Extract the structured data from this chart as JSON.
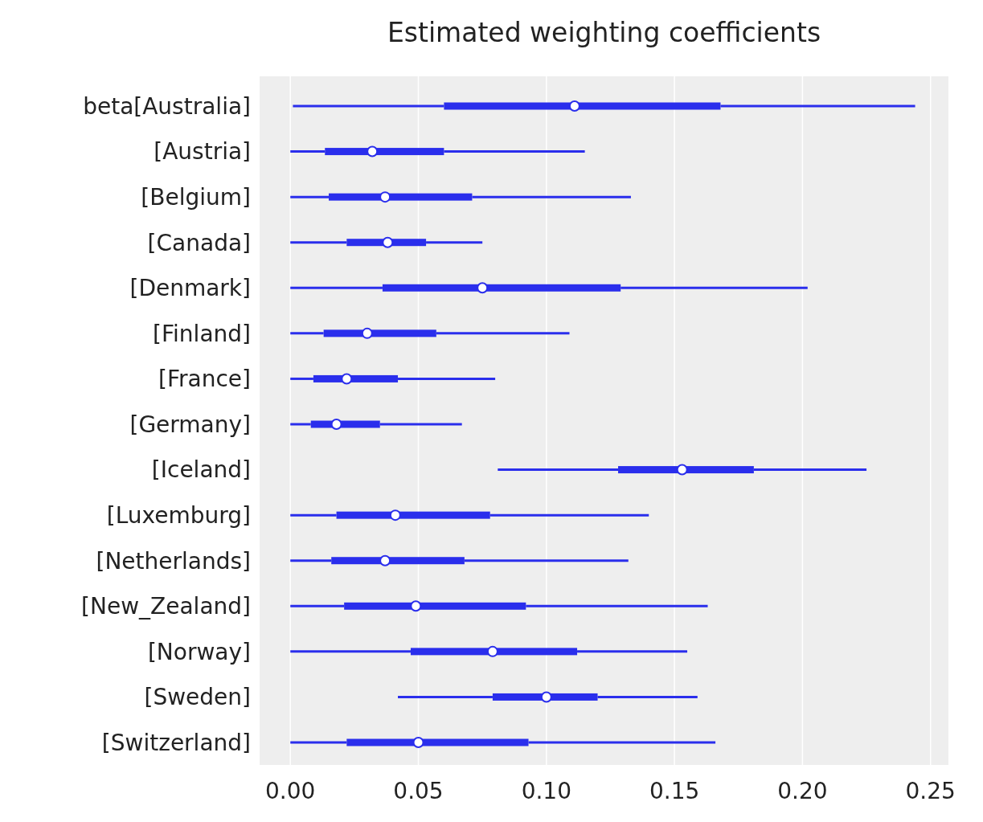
{
  "chart_data": {
    "type": "box",
    "title": "Estimated weighting coefficients",
    "orientation": "horizontal",
    "grid": "x",
    "categories": [
      "beta[Australia]",
      "[Austria]",
      "[Belgium]",
      "[Canada]",
      "[Denmark]",
      "[Finland]",
      "[France]",
      "[Germany]",
      "[Iceland]",
      "[Luxemburg]",
      "[Netherlands]",
      "[New_Zealand]",
      "[Norway]",
      "[Sweden]",
      "[Switzerland]"
    ],
    "series": [
      {
        "color": "#2a2eec",
        "boxes": [
          {
            "low": 0.001,
            "q1": 0.06,
            "median": 0.111,
            "q3": 0.168,
            "high": 0.244
          },
          {
            "low": 0,
            "q1": 0.0135,
            "median": 0.032,
            "q3": 0.06,
            "high": 0.115
          },
          {
            "low": 0,
            "q1": 0.015,
            "median": 0.037,
            "q3": 0.071,
            "high": 0.133
          },
          {
            "low": 0,
            "q1": 0.022,
            "median": 0.038,
            "q3": 0.053,
            "high": 0.075
          },
          {
            "low": 0,
            "q1": 0.036,
            "median": 0.075,
            "q3": 0.129,
            "high": 0.202
          },
          {
            "low": 0,
            "q1": 0.013,
            "median": 0.03,
            "q3": 0.057,
            "high": 0.109
          },
          {
            "low": 0,
            "q1": 0.009,
            "median": 0.022,
            "q3": 0.042,
            "high": 0.08
          },
          {
            "low": 0,
            "q1": 0.008,
            "median": 0.018,
            "q3": 0.035,
            "high": 0.067
          },
          {
            "low": 0.081,
            "q1": 0.128,
            "median": 0.153,
            "q3": 0.181,
            "high": 0.225
          },
          {
            "low": 0,
            "q1": 0.018,
            "median": 0.041,
            "q3": 0.078,
            "high": 0.14
          },
          {
            "low": 0,
            "q1": 0.016,
            "median": 0.037,
            "q3": 0.068,
            "high": 0.132
          },
          {
            "low": 0,
            "q1": 0.021,
            "median": 0.049,
            "q3": 0.092,
            "high": 0.163
          },
          {
            "low": 0,
            "q1": 0.047,
            "median": 0.079,
            "q3": 0.112,
            "high": 0.155
          },
          {
            "low": 0.042,
            "q1": 0.079,
            "median": 0.1,
            "q3": 0.12,
            "high": 0.159
          },
          {
            "low": 0,
            "q1": 0.022,
            "median": 0.05,
            "q3": 0.093,
            "high": 0.166
          }
        ]
      }
    ],
    "xlim": [
      -0.012,
      0.257
    ],
    "xticks": [
      {
        "value": 0,
        "label": "0.00"
      },
      {
        "value": 0.05,
        "label": "0.05"
      },
      {
        "value": 0.1,
        "label": "0.10"
      },
      {
        "value": 0.15,
        "label": "0.15"
      },
      {
        "value": 0.2,
        "label": "0.20"
      },
      {
        "value": 0.25,
        "label": "0.25"
      }
    ]
  }
}
